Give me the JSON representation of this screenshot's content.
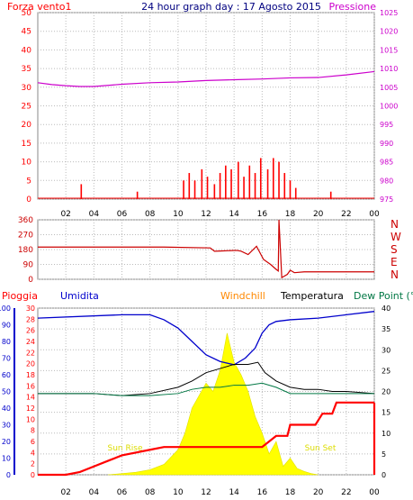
{
  "header": {
    "title": "24 hour graph day : 17 Agosto 2015",
    "left_label": "Forza vento1",
    "right_label": "Pressione"
  },
  "colors": {
    "wind": "#ff0000",
    "pressure": "#cc00cc",
    "title": "#000080",
    "direction": "#cc0000",
    "rain": "#ff0000",
    "humidity": "#0000cc",
    "windchill": "#ff8800",
    "temperature": "#000000",
    "dewpoint": "#007744",
    "solar": "#ffff00"
  },
  "chart_data": [
    {
      "type": "line",
      "name": "wind-pressure",
      "x_ticks": [
        "02",
        "04",
        "06",
        "08",
        "10",
        "12",
        "14",
        "16",
        "18",
        "20",
        "22",
        "00"
      ],
      "left_axis": {
        "label": "Forza vento1",
        "ticks": [
          0,
          5,
          10,
          15,
          20,
          25,
          30,
          35,
          40,
          45,
          50
        ],
        "ylim": [
          0,
          50
        ]
      },
      "right_axis": {
        "label": "Pressione",
        "ticks": [
          975,
          980,
          985,
          990,
          995,
          1000,
          1005,
          1010,
          1015,
          1020,
          1025
        ],
        "ylim": [
          975,
          1025
        ]
      },
      "series": [
        {
          "name": "Pressione",
          "axis": "right",
          "x": [
            0,
            1,
            2,
            3,
            4,
            6,
            8,
            10,
            12,
            14,
            16,
            18,
            20,
            22,
            24
          ],
          "values": [
            1006.2,
            1005.7,
            1005.4,
            1005.2,
            1005.2,
            1005.8,
            1006.2,
            1006.4,
            1006.8,
            1007.0,
            1007.2,
            1007.5,
            1007.6,
            1008.3,
            1009.2
          ]
        },
        {
          "name": "Forza vento1",
          "axis": "left",
          "x": [
            3.1,
            7.1,
            10.4,
            10.8,
            11.2,
            11.7,
            12.1,
            12.6,
            13.0,
            13.4,
            13.8,
            14.3,
            14.7,
            15.1,
            15.5,
            15.9,
            16.4,
            16.8,
            17.2,
            17.6,
            18.0,
            18.4,
            20.9
          ],
          "values": [
            4,
            2,
            5,
            7,
            5,
            8,
            6,
            4,
            7,
            9,
            8,
            10,
            6,
            9,
            7,
            11,
            8,
            11,
            10,
            7,
            5,
            3,
            2
          ]
        }
      ]
    },
    {
      "type": "line",
      "name": "wind-direction",
      "left_axis": {
        "ticks": [
          0,
          90,
          180,
          270,
          360
        ],
        "ylim": [
          0,
          360
        ]
      },
      "right_axis": {
        "labels": [
          "N",
          "W",
          "S",
          "E",
          "N"
        ]
      },
      "series": [
        {
          "name": "Direzione",
          "x": [
            0,
            9,
            12.3,
            12.6,
            13.2,
            14.2,
            14.5,
            15,
            15.6,
            16.1,
            16.6,
            17,
            17.15,
            17.2,
            17.4,
            17.8,
            18,
            18.3,
            19,
            24
          ],
          "values": [
            195,
            195,
            190,
            170,
            172,
            175,
            170,
            150,
            200,
            120,
            90,
            60,
            50,
            360,
            10,
            30,
            55,
            40,
            45,
            45
          ]
        }
      ]
    },
    {
      "type": "line",
      "name": "rain-humidity-temperature",
      "legend": [
        "Pioggia",
        "Umidita",
        "Windchill",
        "Temperatura",
        "Dew Point (°C"
      ],
      "humidity_axis": {
        "ticks": [
          0,
          10,
          20,
          30,
          40,
          50,
          60,
          70,
          80,
          90,
          100
        ],
        "ylim": [
          0,
          100
        ]
      },
      "rain_axis": {
        "ticks": [
          0,
          2,
          4,
          6,
          8,
          10,
          12,
          14,
          16,
          18,
          20,
          22,
          24,
          26,
          28,
          30
        ],
        "ylim": [
          0,
          30
        ]
      },
      "temp_axis": {
        "ticks": [
          0,
          5,
          10,
          15,
          20,
          25,
          30,
          35,
          40
        ],
        "ylim": [
          0,
          40
        ]
      },
      "annotations": [
        "Sun Rise",
        "Sun Set"
      ],
      "series": [
        {
          "name": "Umidita",
          "axis": "humidity",
          "x": [
            0,
            6,
            8,
            9,
            10,
            11,
            12,
            13,
            14,
            14.8,
            15.5,
            16,
            16.5,
            17,
            18,
            20,
            22,
            24
          ],
          "values": [
            94,
            96,
            96,
            93,
            88,
            80,
            72,
            68,
            66,
            70,
            76,
            85,
            90,
            92,
            93,
            94,
            96,
            98
          ]
        },
        {
          "name": "Temperatura",
          "axis": "temp",
          "x": [
            0,
            4,
            6,
            8,
            10,
            11,
            12,
            13,
            14,
            15,
            15.7,
            16.2,
            17,
            18,
            19,
            20,
            21,
            22,
            24
          ],
          "values": [
            19.5,
            19.5,
            19,
            19.5,
            21,
            22.5,
            24.5,
            25.5,
            26.5,
            26.5,
            27,
            24.5,
            22.5,
            21,
            20.5,
            20.5,
            20,
            20,
            19.5
          ]
        },
        {
          "name": "Dew Point (°C",
          "axis": "temp",
          "x": [
            0,
            4,
            6,
            8,
            10,
            11,
            12,
            13,
            14,
            15,
            16,
            17,
            18,
            19,
            20,
            22,
            24
          ],
          "values": [
            19.5,
            19.5,
            19,
            19,
            19.5,
            20.5,
            21,
            21,
            21.5,
            21.5,
            22,
            21,
            19.5,
            19.5,
            19.5,
            19.5,
            19.5
          ]
        },
        {
          "name": "Pioggia",
          "axis": "rain",
          "x": [
            0,
            2,
            3,
            4,
            5,
            6,
            8,
            9,
            16,
            17,
            17.8,
            18,
            19.8,
            20.3,
            21,
            21.3,
            24
          ],
          "values": [
            0,
            0,
            0.5,
            1.5,
            2.5,
            3.5,
            4.5,
            5,
            5,
            7,
            7,
            9,
            9,
            11,
            11,
            13,
            13
          ]
        },
        {
          "name": "Radiazione",
          "axis": "temp",
          "x": [
            5,
            6,
            7,
            8,
            9,
            10,
            10.5,
            11,
            11.5,
            12,
            12.5,
            13,
            13.5,
            14,
            14.5,
            15,
            15.5,
            16,
            16.5,
            17,
            17.5,
            18,
            18.5,
            19,
            19.5,
            20
          ],
          "values": [
            0,
            0.3,
            0.6,
            1.2,
            2.5,
            6,
            10,
            16,
            19,
            22,
            20,
            25,
            34,
            27,
            24,
            20,
            14,
            10,
            5,
            8,
            2,
            4,
            1.5,
            0.8,
            0.3,
            0
          ]
        }
      ]
    }
  ]
}
